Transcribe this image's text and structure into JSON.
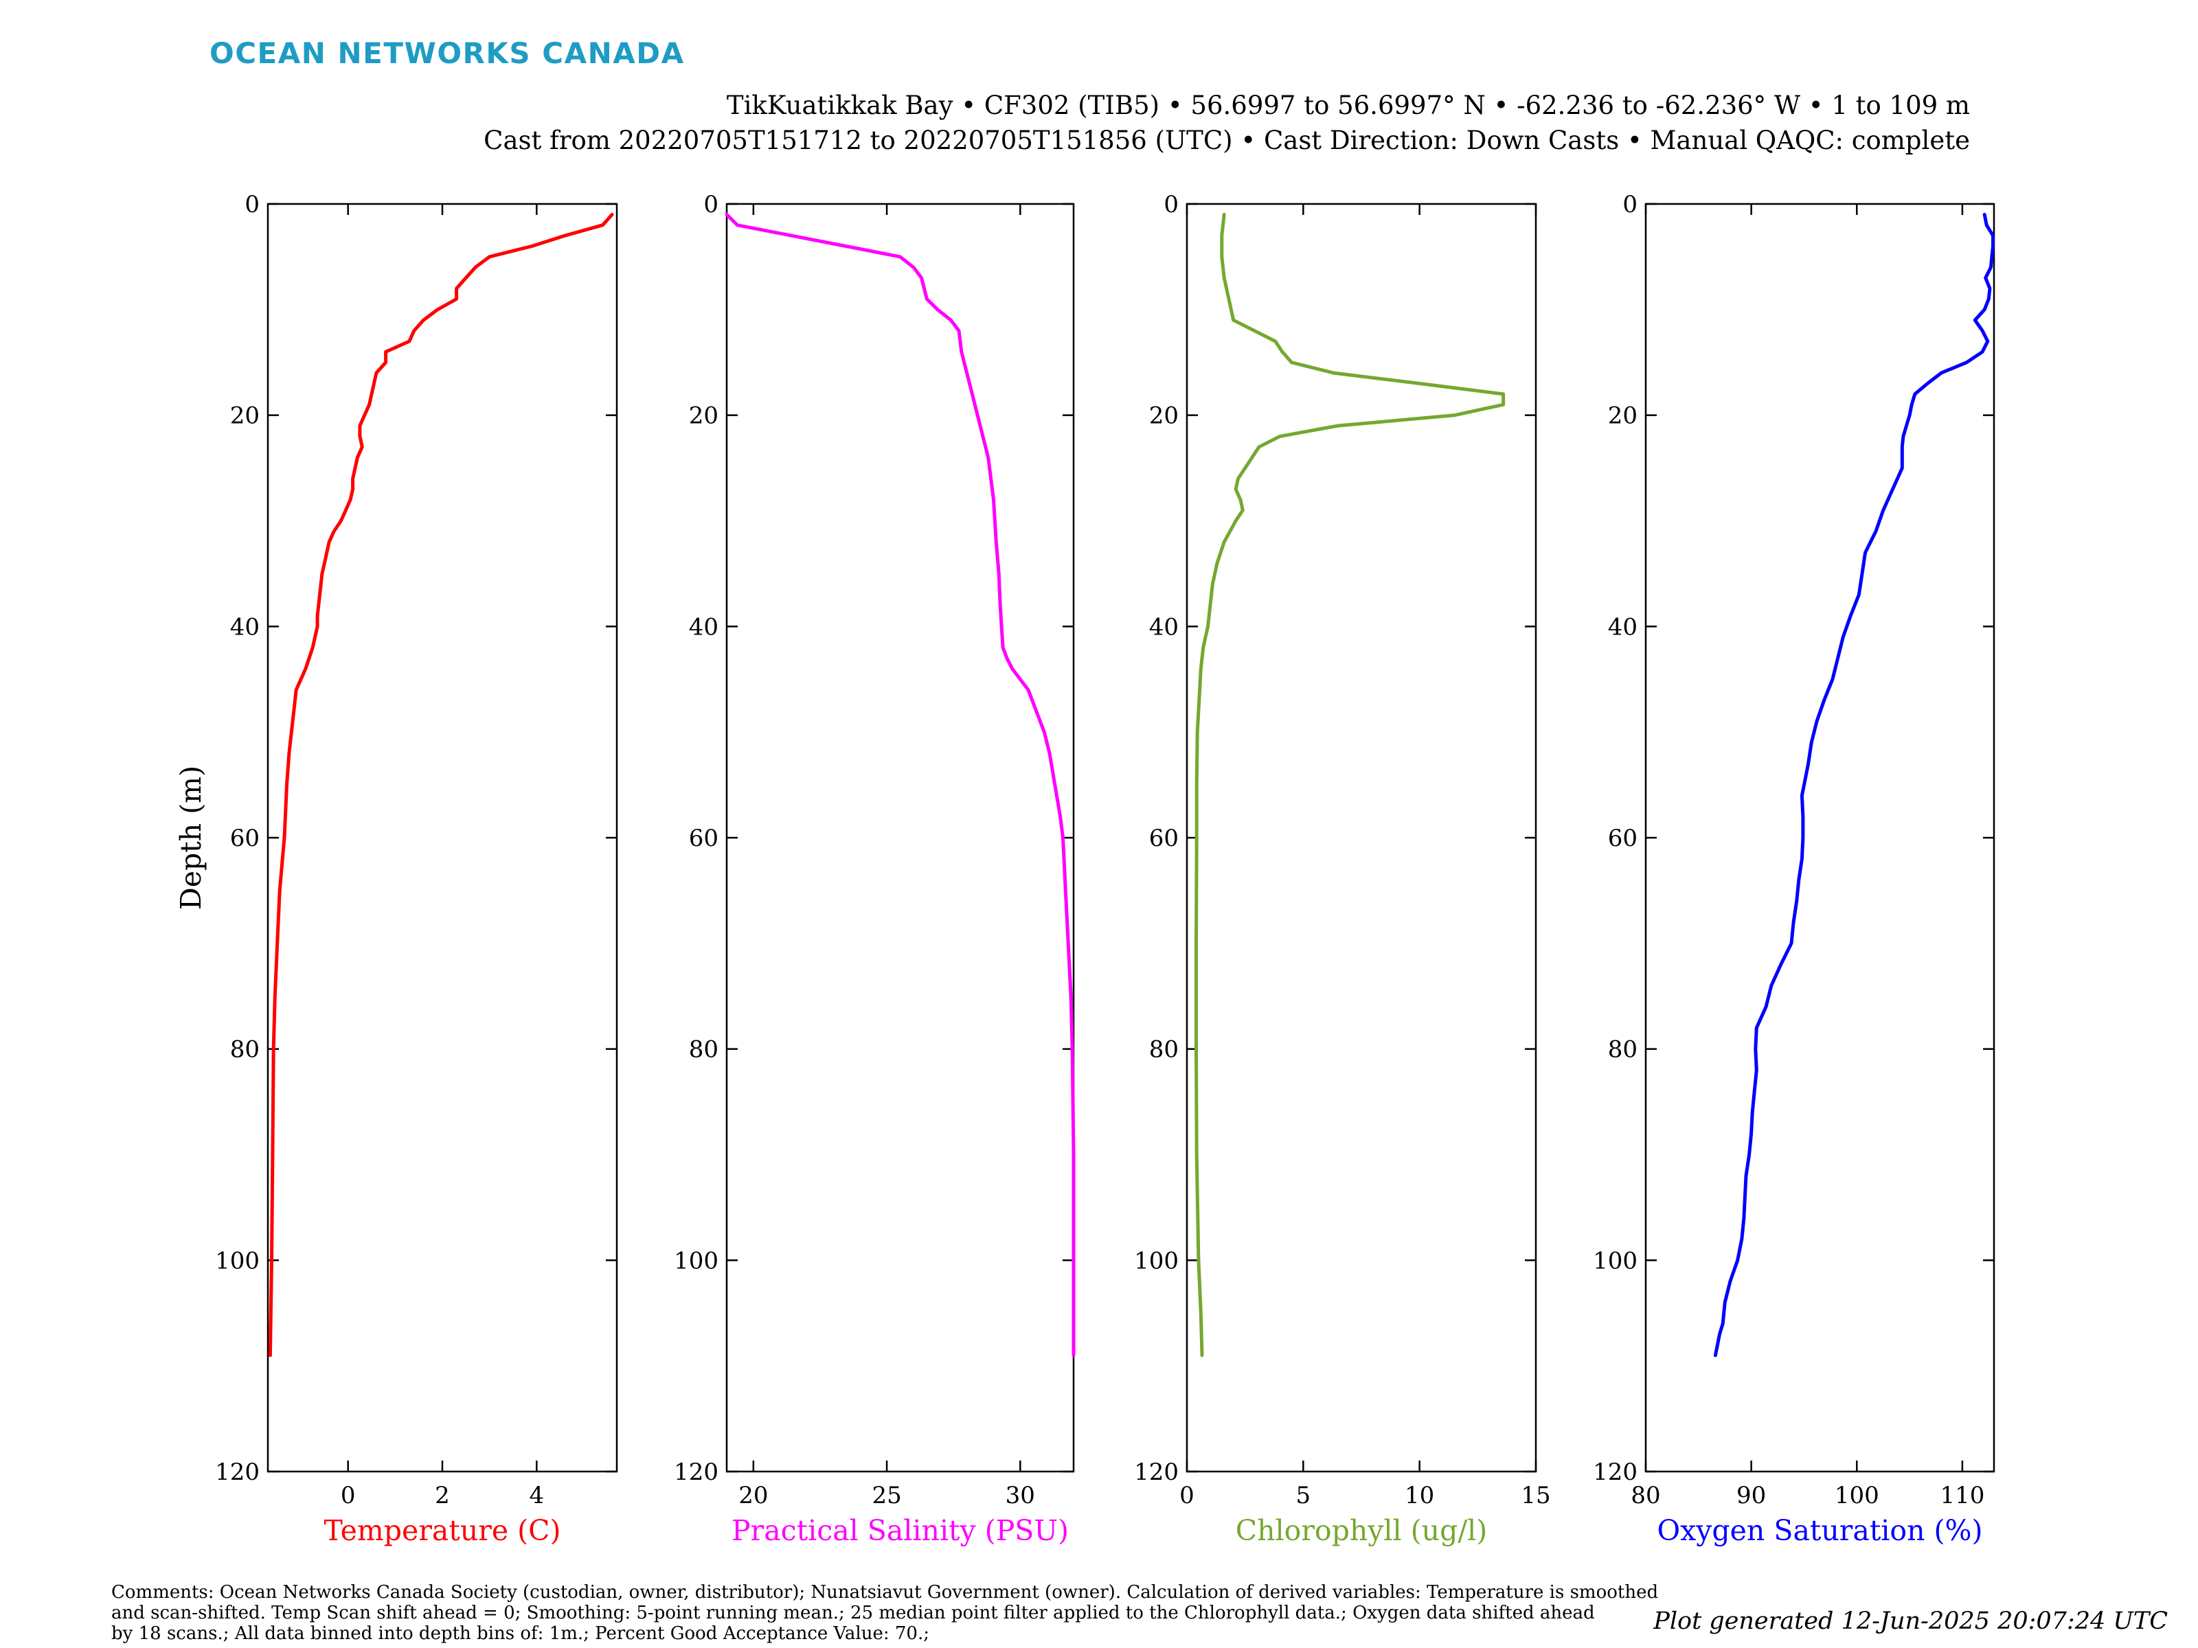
{
  "brand": {
    "name": "OCEAN NETWORKS CANADA",
    "color": "#1e9cc4"
  },
  "header": {
    "line1": "TikKuatikkak Bay • CF302 (TIB5) • 56.6997 to 56.6997° N • -62.236 to -62.236° W • 1 to 109 m",
    "line2": "Cast from 20220705T151712 to 20220705T151856 (UTC) • Cast Direction: Down Casts • Manual QAQC: complete"
  },
  "footer": {
    "comments": [
      "Comments: Ocean Networks Canada Society (custodian, owner, distributor); Nunatsiavut Government (owner). Calculation of derived variables: Temperature is smoothed",
      "and scan-shifted. Temp Scan shift ahead = 0; Smoothing: 5-point running mean.; 25 median point filter applied to the Chlorophyll data.; Oxygen data shifted ahead",
      "by 18 scans.; All data binned into depth bins of: 1m.; Percent Good Acceptance Value: 70.;"
    ],
    "generated": "Plot generated 12-Jun-2025 20:07:24 UTC"
  },
  "chart_data": [
    {
      "type": "line",
      "ylabel": "Depth (m)",
      "xlabel": "Temperature (C)",
      "color": "#ff0000",
      "xlim": [
        -1.7,
        5.7
      ],
      "ylim": [
        0,
        120
      ],
      "y_inverted": true,
      "xticks": [
        0,
        2,
        4
      ],
      "yticks": [
        0,
        20,
        40,
        60,
        80,
        100,
        120
      ],
      "series": [
        {
          "depth": [
            1,
            2,
            3,
            4,
            5,
            6,
            7,
            8,
            9,
            10,
            11,
            12,
            13,
            14,
            15,
            16,
            17,
            18,
            19,
            20,
            21,
            22,
            23,
            24,
            25,
            26,
            27,
            28,
            29,
            30,
            31,
            32,
            33,
            34,
            35,
            37,
            39,
            40,
            42,
            44,
            45,
            46,
            48,
            50,
            52,
            55,
            60,
            65,
            70,
            75,
            80,
            90,
            100,
            109
          ],
          "values": [
            5.6,
            5.4,
            4.6,
            3.9,
            3.0,
            2.7,
            2.5,
            2.3,
            2.3,
            1.9,
            1.6,
            1.4,
            1.3,
            0.8,
            0.8,
            0.6,
            0.55,
            0.5,
            0.45,
            0.35,
            0.25,
            0.25,
            0.3,
            0.2,
            0.15,
            0.1,
            0.1,
            0.05,
            -0.05,
            -0.15,
            -0.3,
            -0.4,
            -0.45,
            -0.5,
            -0.55,
            -0.6,
            -0.65,
            -0.65,
            -0.75,
            -0.9,
            -1.0,
            -1.1,
            -1.15,
            -1.2,
            -1.25,
            -1.3,
            -1.35,
            -1.45,
            -1.5,
            -1.55,
            -1.58,
            -1.6,
            -1.62,
            -1.65
          ]
        }
      ]
    },
    {
      "type": "line",
      "xlabel": "Practical Salinity (PSU)",
      "color": "#ff00ff",
      "xlim": [
        19,
        32
      ],
      "ylim": [
        0,
        120
      ],
      "y_inverted": true,
      "xticks": [
        20,
        25,
        30
      ],
      "yticks": [
        0,
        20,
        40,
        60,
        80,
        100,
        120
      ],
      "series": [
        {
          "depth": [
            1,
            2,
            5,
            6,
            7,
            8,
            9,
            10,
            11,
            12,
            14,
            16,
            18,
            20,
            22,
            24,
            26,
            28,
            30,
            32,
            35,
            38,
            40,
            42,
            43,
            44,
            45,
            46,
            48,
            50,
            52,
            55,
            58,
            60,
            65,
            70,
            75,
            80,
            90,
            100,
            109
          ],
          "values": [
            19.0,
            19.4,
            25.5,
            26.0,
            26.3,
            26.4,
            26.5,
            26.9,
            27.4,
            27.7,
            27.8,
            28.0,
            28.2,
            28.4,
            28.6,
            28.8,
            28.9,
            29.0,
            29.05,
            29.1,
            29.2,
            29.25,
            29.3,
            29.35,
            29.5,
            29.7,
            30.0,
            30.3,
            30.6,
            30.9,
            31.1,
            31.3,
            31.5,
            31.6,
            31.7,
            31.8,
            31.9,
            31.95,
            32.0,
            32.0,
            32.0
          ]
        }
      ]
    },
    {
      "type": "line",
      "xlabel": "Chlorophyll (ug/l)",
      "color": "#76a72f",
      "xlim": [
        0,
        15
      ],
      "ylim": [
        0,
        120
      ],
      "y_inverted": true,
      "xticks": [
        0,
        5,
        10,
        15
      ],
      "yticks": [
        0,
        20,
        40,
        60,
        80,
        100,
        120
      ],
      "series": [
        {
          "depth": [
            1,
            3,
            5,
            7,
            9,
            10,
            11,
            12,
            13,
            14,
            15,
            16,
            17,
            18,
            19,
            20,
            21,
            22,
            23,
            24,
            25,
            26,
            27,
            28,
            29,
            30,
            32,
            34,
            36,
            38,
            40,
            42,
            44,
            46,
            48,
            50,
            55,
            60,
            70,
            80,
            90,
            100,
            105,
            109
          ],
          "values": [
            1.6,
            1.5,
            1.5,
            1.6,
            1.8,
            1.9,
            2.0,
            2.9,
            3.8,
            4.1,
            4.5,
            6.3,
            10.0,
            13.6,
            13.6,
            11.5,
            6.5,
            4.0,
            3.1,
            2.8,
            2.5,
            2.2,
            2.1,
            2.3,
            2.4,
            2.1,
            1.6,
            1.3,
            1.1,
            1.0,
            0.9,
            0.7,
            0.6,
            0.55,
            0.5,
            0.45,
            0.42,
            0.42,
            0.4,
            0.4,
            0.42,
            0.5,
            0.6,
            0.65
          ]
        }
      ]
    },
    {
      "type": "line",
      "xlabel": "Oxygen Saturation (%)",
      "color": "#0000ff",
      "xlim": [
        80,
        113
      ],
      "ylim": [
        0,
        120
      ],
      "y_inverted": true,
      "xticks": [
        80,
        90,
        100,
        110
      ],
      "yticks": [
        0,
        20,
        40,
        60,
        80,
        100,
        120
      ],
      "series": [
        {
          "depth": [
            1,
            2,
            3,
            4,
            5,
            6,
            7,
            8,
            9,
            10,
            11,
            12,
            13,
            14,
            15,
            16,
            17,
            18,
            19,
            20,
            22,
            23,
            25,
            27,
            29,
            31,
            33,
            35,
            37,
            39,
            41,
            43,
            45,
            47,
            49,
            51,
            53,
            55,
            56,
            58,
            60,
            62,
            64,
            66,
            68,
            70,
            72,
            74,
            76,
            78,
            80,
            82,
            84,
            86,
            88,
            90,
            92,
            94,
            96,
            98,
            100,
            102,
            104,
            106,
            107,
            109
          ],
          "values": [
            112.1,
            112.3,
            112.9,
            112.9,
            112.8,
            112.7,
            112.2,
            112.6,
            112.5,
            112.1,
            111.2,
            111.9,
            112.4,
            111.9,
            110.4,
            108.0,
            106.7,
            105.5,
            105.2,
            105.0,
            104.4,
            104.3,
            104.3,
            103.4,
            102.5,
            101.8,
            100.8,
            100.5,
            100.2,
            99.4,
            98.7,
            98.2,
            97.7,
            96.9,
            96.2,
            95.7,
            95.4,
            95.0,
            94.8,
            94.9,
            94.9,
            94.8,
            94.5,
            94.3,
            94.0,
            93.8,
            92.8,
            91.9,
            91.4,
            90.5,
            90.4,
            90.5,
            90.3,
            90.1,
            90.0,
            89.8,
            89.5,
            89.4,
            89.3,
            89.1,
            88.7,
            88.0,
            87.5,
            87.3,
            87.0,
            86.6
          ]
        }
      ]
    }
  ]
}
